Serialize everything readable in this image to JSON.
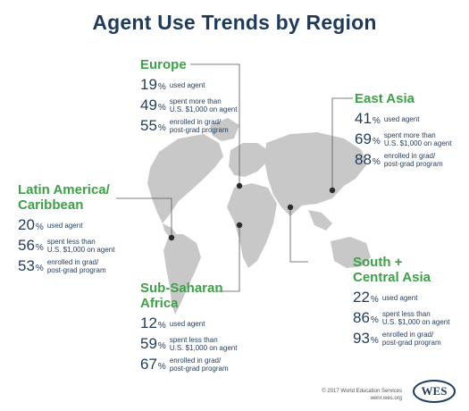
{
  "title": "Agent Use Trends by Region",
  "colors": {
    "title": "#1f3b5c",
    "region": "#3ea048",
    "map": "#c8c8c8",
    "line": "#555555"
  },
  "regions": {
    "europe": {
      "name_lines": [
        "Europe"
      ],
      "stats": [
        {
          "value": "19",
          "unit": "%",
          "desc_lines": [
            "used agent"
          ]
        },
        {
          "value": "49",
          "unit": "%",
          "desc_lines": [
            "spent more than",
            "U.S. $1,000 on agent"
          ]
        },
        {
          "value": "55",
          "unit": "%",
          "desc_lines": [
            "enrolled in grad/",
            "post-grad program"
          ]
        }
      ]
    },
    "east_asia": {
      "name_lines": [
        "East Asia"
      ],
      "stats": [
        {
          "value": "41",
          "unit": "%",
          "desc_lines": [
            "used agent"
          ]
        },
        {
          "value": "69",
          "unit": "%",
          "desc_lines": [
            "spent more than",
            "U.S. $1,000 on agent"
          ]
        },
        {
          "value": "88",
          "unit": "%",
          "desc_lines": [
            "enrolled in grad/",
            "post-grad program"
          ]
        }
      ]
    },
    "latin_america": {
      "name_lines": [
        "Latin America/",
        "Caribbean"
      ],
      "stats": [
        {
          "value": "20",
          "unit": "%",
          "desc_lines": [
            "used agent"
          ]
        },
        {
          "value": "56",
          "unit": "%",
          "desc_lines": [
            "spent less than",
            "U.S. $1,000 on agent"
          ]
        },
        {
          "value": "53",
          "unit": "%",
          "desc_lines": [
            "enrolled in grad/",
            "post-grad program"
          ]
        }
      ]
    },
    "sub_saharan": {
      "name_lines": [
        "Sub-Saharan",
        "Africa"
      ],
      "stats": [
        {
          "value": "12",
          "unit": "%",
          "desc_lines": [
            "used agent"
          ]
        },
        {
          "value": "59",
          "unit": "%",
          "desc_lines": [
            "spent less than",
            "U.S. $1,000 on agent"
          ]
        },
        {
          "value": "67",
          "unit": "%",
          "desc_lines": [
            "enrolled in grad/",
            "post-grad program"
          ]
        }
      ]
    },
    "south_central_asia": {
      "name_lines": [
        "South +",
        "Central Asia"
      ],
      "stats": [
        {
          "value": "22",
          "unit": "%",
          "desc_lines": [
            "used agent"
          ]
        },
        {
          "value": "86",
          "unit": "%",
          "desc_lines": [
            "spent less than",
            "U.S. $1,000 on agent"
          ]
        },
        {
          "value": "93",
          "unit": "%",
          "desc_lines": [
            "enrolled in grad/",
            "post-grad program"
          ]
        }
      ]
    }
  },
  "footer": {
    "copyright": "© 2017 World Education Services",
    "url": "wenr.wes.org"
  },
  "logo": {
    "text": "WES"
  }
}
